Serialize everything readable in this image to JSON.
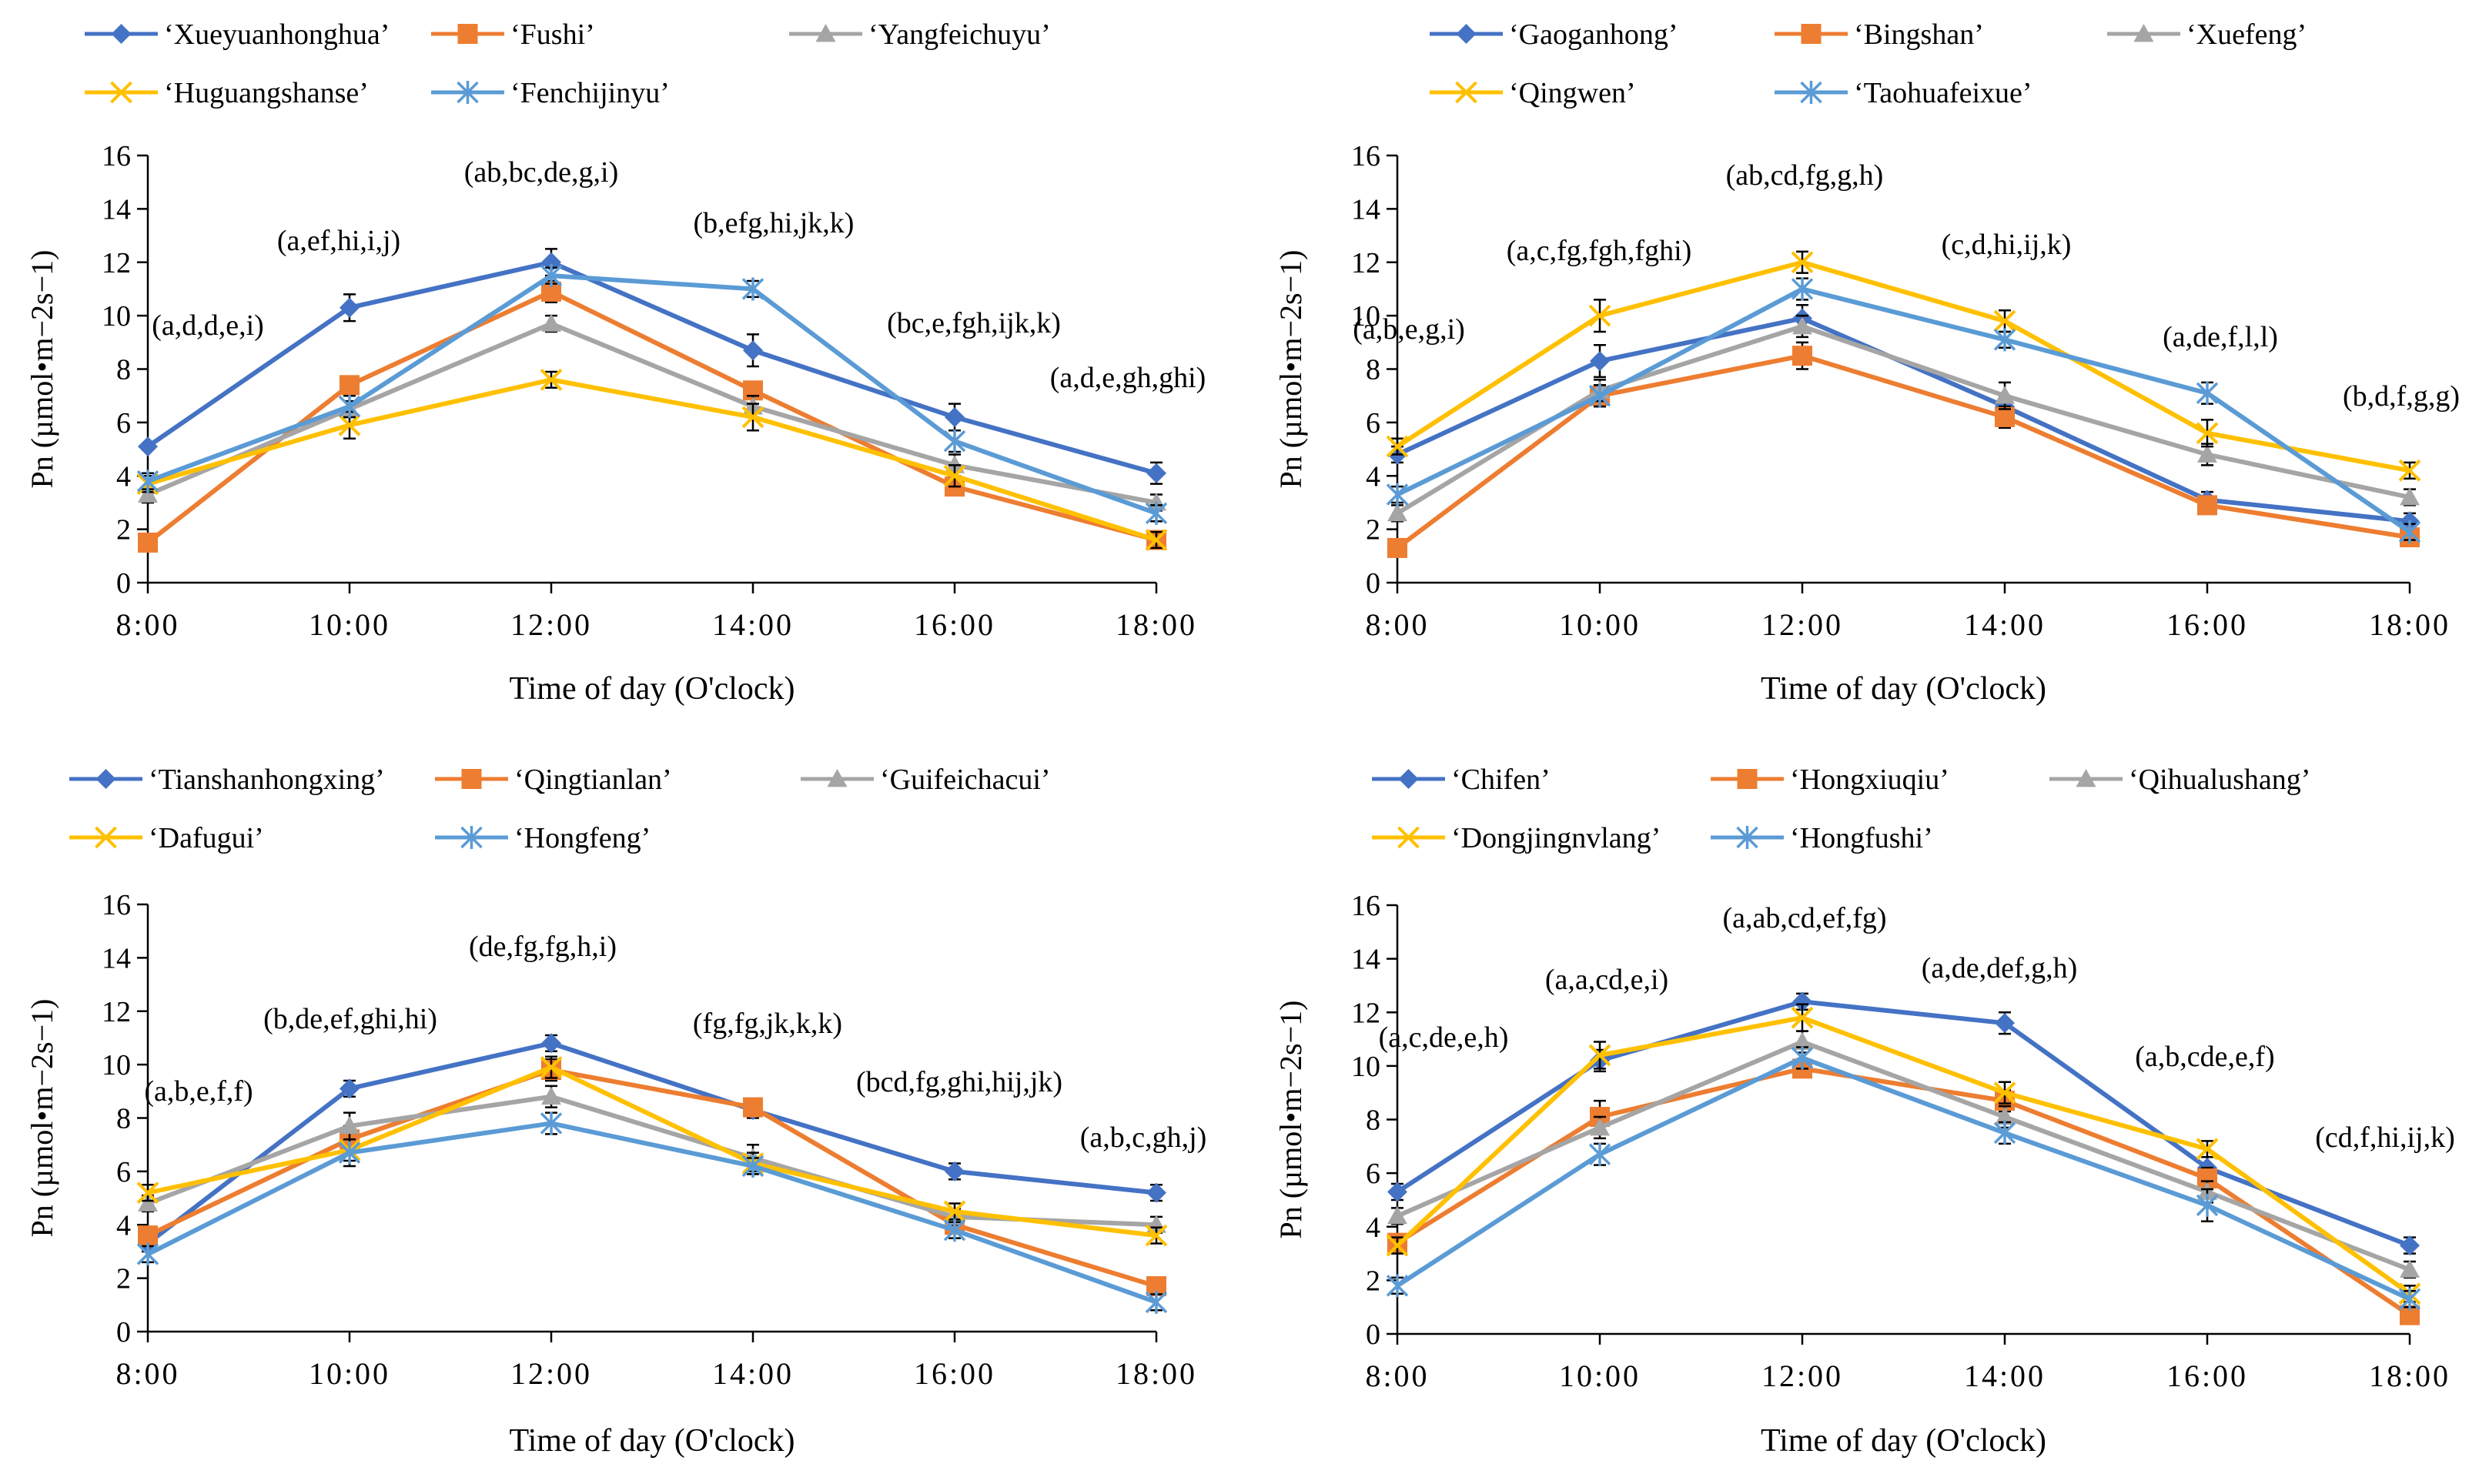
{
  "chart_data": [
    {
      "type": "line",
      "ylabel": "Pn (µmol•m−2s−1)",
      "xlabel": "Time of day (O'clock)",
      "categories": [
        "8:00",
        "10:00",
        "12:00",
        "14:00",
        "16:00",
        "18:00"
      ],
      "ylim": [
        0,
        16
      ],
      "yticks": [
        0,
        2,
        4,
        6,
        8,
        10,
        12,
        14,
        16
      ],
      "series": [
        {
          "name": "‘Xueyuanhonghua’",
          "marker": "diamond",
          "color": "#4472C4",
          "values": [
            5.1,
            10.3,
            12.0,
            8.7,
            6.2,
            4.1
          ],
          "errors": [
            0.0,
            0.5,
            0.5,
            0.6,
            0.5,
            0.4
          ]
        },
        {
          "name": "‘Fushi’",
          "marker": "square",
          "color": "#ED7D31",
          "values": [
            1.5,
            7.4,
            10.9,
            7.2,
            3.6,
            1.6
          ],
          "errors": [
            0.0,
            0.0,
            0.4,
            0.3,
            0.3,
            0.3
          ]
        },
        {
          "name": "‘Yangfeichuyu’",
          "marker": "triangle",
          "color": "#A5A5A5",
          "values": [
            3.3,
            6.5,
            9.7,
            6.6,
            4.4,
            3.0
          ],
          "errors": [
            0.3,
            0.3,
            0.3,
            0.4,
            0.4,
            0.3
          ]
        },
        {
          "name": "‘Huguangshanse’",
          "marker": "x",
          "color": "#FFC000",
          "values": [
            3.7,
            5.9,
            7.6,
            6.2,
            4.0,
            1.6
          ],
          "errors": [
            0.3,
            0.5,
            0.3,
            0.5,
            0.4,
            0.3
          ]
        },
        {
          "name": "‘Fenchijinyu’",
          "marker": "star",
          "color": "#5B9BD5",
          "values": [
            3.8,
            6.6,
            11.5,
            11.0,
            5.3,
            2.6
          ],
          "errors": [
            0.3,
            0.4,
            0.3,
            0.3,
            0.4,
            0.3
          ]
        }
      ],
      "annotations": [
        "(a,d,d,e,i)",
        "(a,ef,hi,i,j)",
        "(ab,bc,de,g,i)",
        "(b,efg,hi,jk,k)",
        "(bc,e,fgh,ijk,k)",
        "(a,d,e,gh,ghi)"
      ]
    },
    {
      "type": "line",
      "ylabel": "Pn (µmol•m−2s−1)",
      "xlabel": "Time of day (O'clock)",
      "categories": [
        "8:00",
        "10:00",
        "12:00",
        "14:00",
        "16:00",
        "18:00"
      ],
      "ylim": [
        0,
        16
      ],
      "yticks": [
        0,
        2,
        4,
        6,
        8,
        10,
        12,
        14,
        16
      ],
      "series": [
        {
          "name": "‘Gaoganhong’",
          "marker": "diamond",
          "color": "#4472C4",
          "values": [
            4.8,
            8.3,
            9.9,
            6.6,
            3.1,
            2.3
          ],
          "errors": [
            0.3,
            0.6,
            0.5,
            0.4,
            0.3,
            0.3
          ]
        },
        {
          "name": "‘Bingshan’",
          "marker": "square",
          "color": "#ED7D31",
          "values": [
            1.3,
            7.0,
            8.5,
            6.2,
            2.9,
            1.7
          ],
          "errors": [
            0.0,
            0.4,
            0.5,
            0.4,
            0.3,
            0.3
          ]
        },
        {
          "name": "‘Xuefeng’",
          "marker": "triangle",
          "color": "#A5A5A5",
          "values": [
            2.6,
            7.2,
            9.6,
            7.0,
            4.8,
            3.2
          ],
          "errors": [
            0.3,
            0.4,
            0.4,
            0.5,
            0.4,
            0.3
          ]
        },
        {
          "name": "‘Qingwen’",
          "marker": "x",
          "color": "#FFC000",
          "values": [
            5.1,
            10.0,
            12.0,
            9.8,
            5.6,
            4.2
          ],
          "errors": [
            0.3,
            0.6,
            0.4,
            0.4,
            0.5,
            0.3
          ]
        },
        {
          "name": "‘Taohuafeixue’",
          "marker": "star",
          "color": "#5B9BD5",
          "values": [
            3.3,
            7.0,
            11.0,
            9.1,
            7.1,
            1.9
          ],
          "errors": [
            0.3,
            0.4,
            0.4,
            0.3,
            0.4,
            0.3
          ]
        }
      ],
      "annotations": [
        "(a,b,e,g,i)",
        "(a,c,fg,fgh,fghi)",
        "(ab,cd,fg,g,h)",
        "(c,d,hi,ij,k)",
        "(a,de,f,l,l)",
        "(b,d,f,g,g)"
      ]
    },
    {
      "type": "line",
      "ylabel": "Pn (µmol•m−2s−1)",
      "xlabel": "Time of day (O'clock)",
      "categories": [
        "8:00",
        "10:00",
        "12:00",
        "14:00",
        "16:00",
        "18:00"
      ],
      "ylim": [
        0,
        16
      ],
      "yticks": [
        0,
        2,
        4,
        6,
        8,
        10,
        12,
        14,
        16
      ],
      "series": [
        {
          "name": "‘Tianshanhongxing’",
          "marker": "diamond",
          "color": "#4472C4",
          "values": [
            3.3,
            9.1,
            10.8,
            8.3,
            6.0,
            5.2
          ],
          "errors": [
            0.3,
            0.3,
            0.3,
            0.3,
            0.3,
            0.3
          ]
        },
        {
          "name": "‘Qingtianlan’",
          "marker": "square",
          "color": "#ED7D31",
          "values": [
            3.6,
            7.2,
            9.8,
            8.4,
            4.0,
            1.7
          ],
          "errors": [
            0.3,
            0.5,
            0.4,
            0.3,
            0.3,
            0.3
          ]
        },
        {
          "name": "‘Guifeichacui’",
          "marker": "triangle",
          "color": "#A5A5A5",
          "values": [
            4.8,
            7.7,
            8.8,
            6.5,
            4.3,
            4.0
          ],
          "errors": [
            0.3,
            0.5,
            0.4,
            0.5,
            0.3,
            0.3
          ]
        },
        {
          "name": "‘Dafugui’",
          "marker": "x",
          "color": "#FFC000",
          "values": [
            5.2,
            6.8,
            9.9,
            6.3,
            4.5,
            3.6
          ],
          "errors": [
            0.3,
            0.4,
            0.4,
            0.4,
            0.3,
            0.3
          ]
        },
        {
          "name": "‘Hongfeng’",
          "marker": "star",
          "color": "#5B9BD5",
          "values": [
            2.9,
            6.7,
            7.8,
            6.2,
            3.8,
            1.1
          ],
          "errors": [
            0.3,
            0.5,
            0.4,
            0.3,
            0.3,
            0.3
          ]
        }
      ],
      "annotations": [
        "(a,b,e,f,f)",
        "(b,de,ef,ghi,hi)",
        "(de,fg,fg,h,i)",
        "(fg,fg,jk,k,k)",
        "(bcd,fg,ghi,hij,jk)",
        "(a,b,c,gh,j)"
      ]
    },
    {
      "type": "line",
      "ylabel": "Pn (µmol•m−2s−1)",
      "xlabel": "Time of day (O'clock)",
      "categories": [
        "8:00",
        "10:00",
        "12:00",
        "14:00",
        "16:00",
        "18:00"
      ],
      "ylim": [
        0,
        16
      ],
      "yticks": [
        0,
        2,
        4,
        6,
        8,
        10,
        12,
        14,
        16
      ],
      "series": [
        {
          "name": "‘Chifen’",
          "marker": "diamond",
          "color": "#4472C4",
          "values": [
            5.3,
            10.2,
            12.4,
            11.6,
            6.2,
            3.3
          ],
          "errors": [
            0.3,
            0.4,
            0.3,
            0.4,
            0.4,
            0.3
          ]
        },
        {
          "name": "‘Hongxiuqiu’",
          "marker": "square",
          "color": "#ED7D31",
          "values": [
            3.4,
            8.1,
            9.9,
            8.7,
            5.8,
            0.7
          ],
          "errors": [
            0.3,
            0.6,
            0.3,
            0.4,
            0.4,
            0.3
          ]
        },
        {
          "name": "‘Qihualushang’",
          "marker": "triangle",
          "color": "#A5A5A5",
          "values": [
            4.4,
            7.7,
            10.9,
            8.1,
            5.3,
            2.4
          ],
          "errors": [
            0.3,
            0.4,
            0.4,
            0.4,
            0.4,
            0.3
          ]
        },
        {
          "name": "‘Dongjingnvlang’",
          "marker": "x",
          "color": "#FFC000",
          "values": [
            3.3,
            10.4,
            11.8,
            9.0,
            6.9,
            1.5
          ],
          "errors": [
            0.3,
            0.5,
            0.5,
            0.4,
            0.3,
            0.3
          ]
        },
        {
          "name": "‘Hongfushi’",
          "marker": "star",
          "color": "#5B9BD5",
          "values": [
            1.8,
            6.7,
            10.3,
            7.5,
            4.8,
            1.3
          ],
          "errors": [
            0.3,
            0.4,
            0.4,
            0.4,
            0.6,
            0.3
          ]
        }
      ],
      "annotations": [
        "(a,c,de,e,h)",
        "(a,a,cd,e,i)",
        "(a,ab,cd,ef,fg)",
        "(a,de,def,g,h)",
        "(a,b,cde,e,f)",
        "(cd,f,hi,ij,k)"
      ]
    }
  ]
}
